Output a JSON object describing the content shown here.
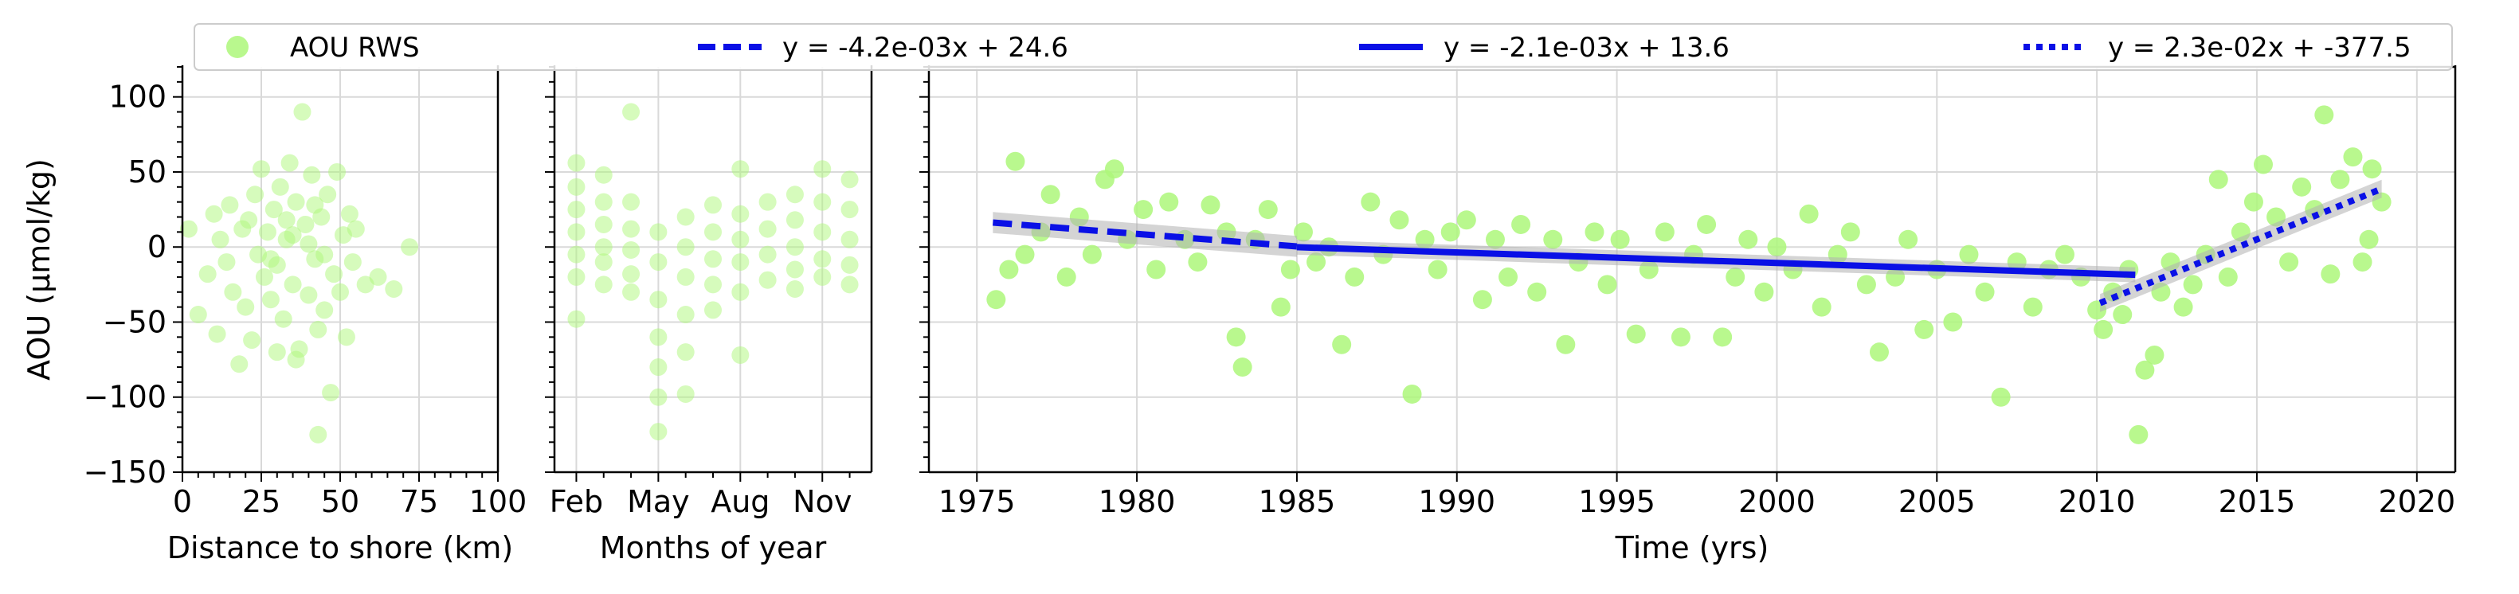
{
  "figure": {
    "legend": {
      "placement": "top",
      "entries": [
        {
          "label": "AOU RWS",
          "marker": "circle",
          "color": "#adf77a"
        },
        {
          "label": "y = -4.2e-03x + 24.6",
          "line_style": "dashed",
          "color": "#0a10e6"
        },
        {
          "label": "y = -2.1e-03x + 13.6",
          "line_style": "solid",
          "color": "#0a10e6"
        },
        {
          "label": "y = 2.3e-02x + -377.5",
          "line_style": "dotted",
          "color": "#0a10e6"
        }
      ]
    }
  },
  "chart_data": [
    {
      "type": "scatter",
      "xlabel": "Distance to shore (km)",
      "ylabel": "AOU (µmol/kg)",
      "xlim": [
        0,
        100
      ],
      "ylim": [
        -150,
        120
      ],
      "xticks": [
        0,
        25,
        50,
        75,
        100
      ],
      "yticks": [
        -150,
        -100,
        -50,
        0,
        50,
        100
      ],
      "grid": true,
      "point_color": "#adf77a",
      "points": [
        [
          2,
          12
        ],
        [
          5,
          -45
        ],
        [
          8,
          -18
        ],
        [
          10,
          22
        ],
        [
          11,
          -58
        ],
        [
          12,
          5
        ],
        [
          14,
          -10
        ],
        [
          15,
          28
        ],
        [
          16,
          -30
        ],
        [
          18,
          -78
        ],
        [
          19,
          12
        ],
        [
          20,
          -40
        ],
        [
          21,
          18
        ],
        [
          22,
          -62
        ],
        [
          23,
          35
        ],
        [
          24,
          -5
        ],
        [
          25,
          52
        ],
        [
          26,
          -20
        ],
        [
          27,
          10
        ],
        [
          28,
          -35
        ],
        [
          29,
          25
        ],
        [
          30,
          -12
        ],
        [
          31,
          40
        ],
        [
          32,
          -48
        ],
        [
          33,
          5
        ],
        [
          34,
          56
        ],
        [
          35,
          -25
        ],
        [
          36,
          30
        ],
        [
          37,
          -68
        ],
        [
          38,
          90
        ],
        [
          39,
          15
        ],
        [
          40,
          -32
        ],
        [
          41,
          48
        ],
        [
          42,
          -8
        ],
        [
          43,
          -55
        ],
        [
          44,
          20
        ],
        [
          45,
          -42
        ],
        [
          46,
          35
        ],
        [
          47,
          -97
        ],
        [
          48,
          -18
        ],
        [
          49,
          50
        ],
        [
          50,
          -30
        ],
        [
          51,
          8
        ],
        [
          52,
          -60
        ],
        [
          53,
          22
        ],
        [
          54,
          -10
        ],
        [
          55,
          12
        ],
        [
          58,
          -25
        ],
        [
          62,
          -20
        ],
        [
          67,
          -28
        ],
        [
          72,
          0
        ],
        [
          43,
          -125
        ],
        [
          36,
          -75
        ],
        [
          30,
          -70
        ],
        [
          33,
          18
        ],
        [
          40,
          2
        ],
        [
          45,
          -5
        ],
        [
          35,
          8
        ],
        [
          28,
          -8
        ],
        [
          42,
          28
        ]
      ]
    },
    {
      "type": "scatter",
      "xlabel": "Months of year",
      "ylim": [
        -150,
        120
      ],
      "xticks": [
        "Feb",
        "May",
        "Aug",
        "Nov"
      ],
      "yticks": [
        -150,
        -100,
        -50,
        0,
        50,
        100
      ],
      "grid": true,
      "point_color": "#adf77a",
      "points": [
        [
          "Feb",
          56
        ],
        [
          "Feb",
          40
        ],
        [
          "Feb",
          25
        ],
        [
          "Feb",
          10
        ],
        [
          "Feb",
          -5
        ],
        [
          "Feb",
          -20
        ],
        [
          "Feb",
          -48
        ],
        [
          "Mar",
          48
        ],
        [
          "Mar",
          30
        ],
        [
          "Mar",
          15
        ],
        [
          "Mar",
          0
        ],
        [
          "Mar",
          -10
        ],
        [
          "Mar",
          -25
        ],
        [
          "Apr",
          90
        ],
        [
          "Apr",
          30
        ],
        [
          "Apr",
          12
        ],
        [
          "Apr",
          -2
        ],
        [
          "Apr",
          -18
        ],
        [
          "Apr",
          -30
        ],
        [
          "May",
          10
        ],
        [
          "May",
          -10
        ],
        [
          "May",
          -35
        ],
        [
          "May",
          -60
        ],
        [
          "May",
          -80
        ],
        [
          "May",
          -100
        ],
        [
          "May",
          -123
        ],
        [
          "Jun",
          20
        ],
        [
          "Jun",
          0
        ],
        [
          "Jun",
          -20
        ],
        [
          "Jun",
          -45
        ],
        [
          "Jun",
          -70
        ],
        [
          "Jun",
          -98
        ],
        [
          "Jul",
          28
        ],
        [
          "Jul",
          10
        ],
        [
          "Jul",
          -8
        ],
        [
          "Jul",
          -25
        ],
        [
          "Jul",
          -42
        ],
        [
          "Aug",
          52
        ],
        [
          "Aug",
          22
        ],
        [
          "Aug",
          5
        ],
        [
          "Aug",
          -10
        ],
        [
          "Aug",
          -30
        ],
        [
          "Aug",
          -72
        ],
        [
          "Sep",
          30
        ],
        [
          "Sep",
          12
        ],
        [
          "Sep",
          -5
        ],
        [
          "Sep",
          -22
        ],
        [
          "Oct",
          35
        ],
        [
          "Oct",
          18
        ],
        [
          "Oct",
          0
        ],
        [
          "Oct",
          -15
        ],
        [
          "Oct",
          -28
        ],
        [
          "Nov",
          52
        ],
        [
          "Nov",
          30
        ],
        [
          "Nov",
          10
        ],
        [
          "Nov",
          -8
        ],
        [
          "Nov",
          -20
        ],
        [
          "Dec",
          45
        ],
        [
          "Dec",
          25
        ],
        [
          "Dec",
          5
        ],
        [
          "Dec",
          -12
        ],
        [
          "Dec",
          -25
        ]
      ]
    },
    {
      "type": "scatter",
      "xlabel": "Time (yrs)",
      "xlim": [
        1973.5,
        2021.2
      ],
      "ylim": [
        -150,
        120
      ],
      "xticks": [
        1975,
        1980,
        1985,
        1990,
        1995,
        2000,
        2005,
        2010,
        2015,
        2020
      ],
      "yticks": [
        -150,
        -100,
        -50,
        0,
        50,
        100
      ],
      "grid": true,
      "point_color": "#adf77a",
      "points": [
        [
          1975.6,
          -35
        ],
        [
          1976.0,
          -15
        ],
        [
          1976.2,
          57
        ],
        [
          1976.5,
          -5
        ],
        [
          1977.0,
          10
        ],
        [
          1977.3,
          35
        ],
        [
          1977.8,
          -20
        ],
        [
          1978.2,
          20
        ],
        [
          1978.6,
          -5
        ],
        [
          1979.0,
          45
        ],
        [
          1979.3,
          52
        ],
        [
          1979.7,
          5
        ],
        [
          1980.2,
          25
        ],
        [
          1980.6,
          -15
        ],
        [
          1981.0,
          30
        ],
        [
          1981.5,
          5
        ],
        [
          1981.9,
          -10
        ],
        [
          1982.3,
          28
        ],
        [
          1982.8,
          10
        ],
        [
          1983.1,
          -60
        ],
        [
          1983.3,
          -80
        ],
        [
          1983.7,
          5
        ],
        [
          1984.1,
          25
        ],
        [
          1984.5,
          -40
        ],
        [
          1984.8,
          -15
        ],
        [
          1985.2,
          10
        ],
        [
          1985.6,
          -10
        ],
        [
          1986.0,
          0
        ],
        [
          1986.4,
          -65
        ],
        [
          1986.8,
          -20
        ],
        [
          1987.3,
          30
        ],
        [
          1987.7,
          -5
        ],
        [
          1988.2,
          18
        ],
        [
          1988.6,
          -98
        ],
        [
          1989.0,
          5
        ],
        [
          1989.4,
          -15
        ],
        [
          1989.8,
          10
        ],
        [
          1990.3,
          18
        ],
        [
          1990.8,
          -35
        ],
        [
          1991.2,
          5
        ],
        [
          1991.6,
          -20
        ],
        [
          1992.0,
          15
        ],
        [
          1992.5,
          -30
        ],
        [
          1993.0,
          5
        ],
        [
          1993.4,
          -65
        ],
        [
          1993.8,
          -10
        ],
        [
          1994.3,
          10
        ],
        [
          1994.7,
          -25
        ],
        [
          1995.1,
          5
        ],
        [
          1995.6,
          -58
        ],
        [
          1996.0,
          -15
        ],
        [
          1996.5,
          10
        ],
        [
          1997.0,
          -60
        ],
        [
          1997.4,
          -5
        ],
        [
          1997.8,
          15
        ],
        [
          1998.3,
          -60
        ],
        [
          1998.7,
          -20
        ],
        [
          1999.1,
          5
        ],
        [
          1999.6,
          -30
        ],
        [
          2000.0,
          0
        ],
        [
          2000.5,
          -15
        ],
        [
          2001.0,
          22
        ],
        [
          2001.4,
          -40
        ],
        [
          2001.9,
          -5
        ],
        [
          2002.3,
          10
        ],
        [
          2002.8,
          -25
        ],
        [
          2003.2,
          -70
        ],
        [
          2003.7,
          -20
        ],
        [
          2004.1,
          5
        ],
        [
          2004.6,
          -55
        ],
        [
          2005.0,
          -15
        ],
        [
          2005.5,
          -50
        ],
        [
          2006.0,
          -5
        ],
        [
          2006.5,
          -30
        ],
        [
          2007.0,
          -100
        ],
        [
          2007.5,
          -10
        ],
        [
          2008.0,
          -40
        ],
        [
          2008.5,
          -15
        ],
        [
          2009.0,
          -5
        ],
        [
          2009.5,
          -20
        ],
        [
          2010.0,
          -42
        ],
        [
          2010.2,
          -55
        ],
        [
          2010.5,
          -30
        ],
        [
          2010.8,
          -45
        ],
        [
          2011.0,
          -15
        ],
        [
          2011.3,
          -125
        ],
        [
          2011.5,
          -82
        ],
        [
          2011.8,
          -72
        ],
        [
          2012.0,
          -30
        ],
        [
          2012.3,
          -10
        ],
        [
          2012.7,
          -40
        ],
        [
          2013.0,
          -25
        ],
        [
          2013.4,
          -5
        ],
        [
          2013.8,
          45
        ],
        [
          2014.1,
          -20
        ],
        [
          2014.5,
          10
        ],
        [
          2014.9,
          30
        ],
        [
          2015.2,
          55
        ],
        [
          2015.6,
          20
        ],
        [
          2016.0,
          -10
        ],
        [
          2016.4,
          40
        ],
        [
          2016.8,
          25
        ],
        [
          2017.1,
          88
        ],
        [
          2017.3,
          -18
        ],
        [
          2017.6,
          45
        ],
        [
          2018.0,
          60
        ],
        [
          2018.3,
          -10
        ],
        [
          2018.6,
          52
        ],
        [
          2018.9,
          30
        ],
        [
          2018.5,
          5
        ]
      ],
      "fit_lines": [
        {
          "style": "dashed",
          "x": [
            1975.5,
            1985.0
          ],
          "y": [
            16.3,
            0.4
          ],
          "band": 7
        },
        {
          "style": "solid",
          "x": [
            1985.0,
            2011.2
          ],
          "y": [
            -0.1,
            -18.5
          ],
          "band": 5
        },
        {
          "style": "dotted",
          "x": [
            2010.1,
            2018.9
          ],
          "y": [
            -37.3,
            38.8
          ],
          "band": 6
        }
      ]
    }
  ]
}
